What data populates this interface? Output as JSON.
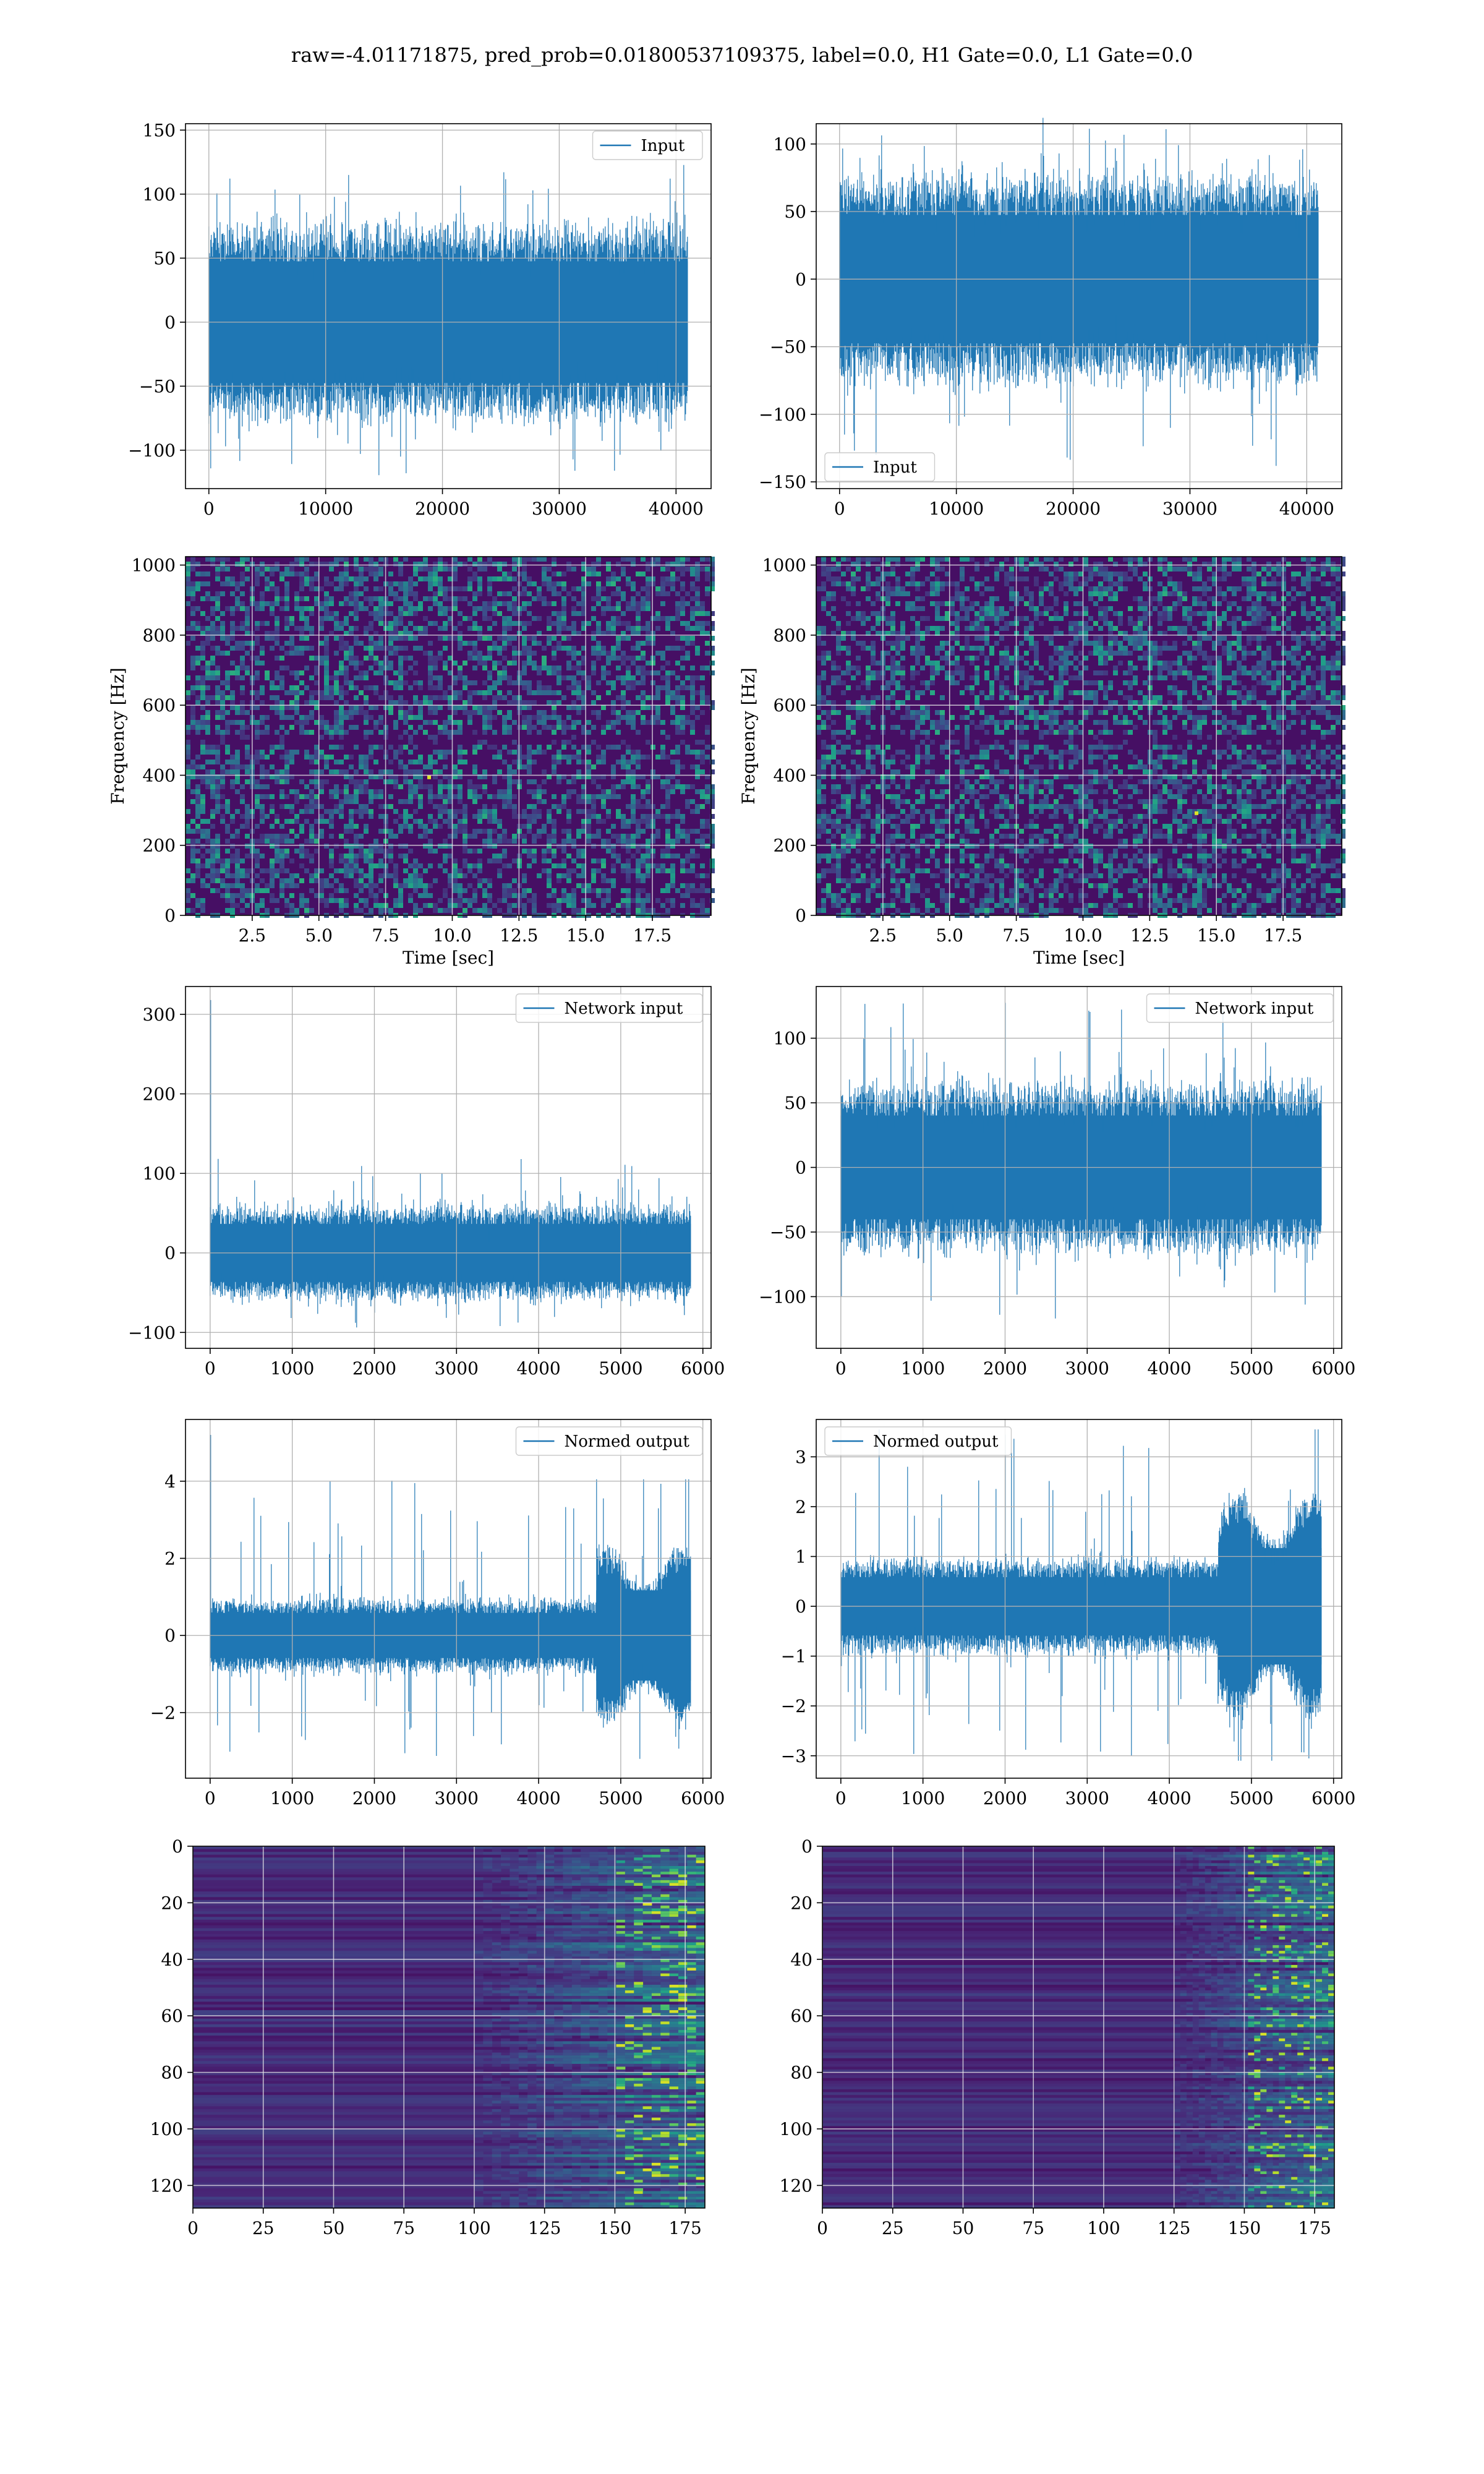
{
  "figure": {
    "suptitle": "raw=-4.01171875, pred_prob=0.01800537109375, label=0.0, H1 Gate=0.0, L1 Gate=0.0",
    "line_color": "#1f77b4"
  },
  "chart_data": [
    {
      "id": "h1-input",
      "type": "line",
      "series": [
        {
          "name": "Input"
        }
      ],
      "legend_loc": "upper right",
      "xlim": [
        -2000,
        43000
      ],
      "ylim": [
        -130,
        155
      ],
      "xticks": [
        0,
        10000,
        20000,
        30000,
        40000
      ],
      "xticklabels": [
        "0",
        "10000",
        "20000",
        "30000",
        "40000"
      ],
      "yticks": [
        -100,
        -50,
        0,
        50,
        100,
        150
      ],
      "yticklabels": [
        "−100",
        "−50",
        "0",
        "50",
        "100",
        "150"
      ],
      "signal": {
        "n_samples": 40960,
        "band_low": -65,
        "band_high": 65,
        "spike_min": -120,
        "spike_max": 130
      },
      "grid": true
    },
    {
      "id": "l1-input",
      "type": "line",
      "series": [
        {
          "name": "Input"
        }
      ],
      "legend_loc": "lower left",
      "xlim": [
        -2000,
        43000
      ],
      "ylim": [
        -155,
        115
      ],
      "xticks": [
        0,
        10000,
        20000,
        30000,
        40000
      ],
      "xticklabels": [
        "0",
        "10000",
        "20000",
        "30000",
        "40000"
      ],
      "yticks": [
        -150,
        -100,
        -50,
        0,
        50,
        100
      ],
      "yticklabels": [
        "−150",
        "−100",
        "−50",
        "0",
        "50",
        "100"
      ],
      "signal": {
        "n_samples": 40960,
        "band_low": -65,
        "band_high": 65,
        "spike_min": -142,
        "spike_max": 122
      },
      "grid": true
    },
    {
      "id": "h1-spectrogram",
      "type": "heatmap",
      "xlabel": "Time [sec]",
      "ylabel": "Frequency [Hz]",
      "xlim": [
        0,
        19.7
      ],
      "ylim": [
        0,
        1024
      ],
      "xticks": [
        2.5,
        5.0,
        7.5,
        10.0,
        12.5,
        15.0,
        17.5
      ],
      "xticklabels": [
        "2.5",
        "5.0",
        "7.5",
        "10.0",
        "12.5",
        "15.0",
        "17.5"
      ],
      "yticks": [
        0,
        200,
        400,
        600,
        800,
        1000
      ],
      "yticklabels": [
        "0",
        "200",
        "400",
        "600",
        "800",
        "1000"
      ],
      "colormap": "viridis",
      "grid": true
    },
    {
      "id": "l1-spectrogram",
      "type": "heatmap",
      "xlabel": "Time [sec]",
      "ylabel": "Frequency [Hz]",
      "xlim": [
        0,
        19.7
      ],
      "ylim": [
        0,
        1024
      ],
      "xticks": [
        2.5,
        5.0,
        7.5,
        10.0,
        12.5,
        15.0,
        17.5
      ],
      "xticklabels": [
        "2.5",
        "5.0",
        "7.5",
        "10.0",
        "12.5",
        "15.0",
        "17.5"
      ],
      "yticks": [
        0,
        200,
        400,
        600,
        800,
        1000
      ],
      "yticklabels": [
        "0",
        "200",
        "400",
        "600",
        "800",
        "1000"
      ],
      "colormap": "viridis",
      "grid": true
    },
    {
      "id": "h1-network-input",
      "type": "line",
      "series": [
        {
          "name": "Network input"
        }
      ],
      "legend_loc": "upper right",
      "xlim": [
        -300,
        6100
      ],
      "ylim": [
        -120,
        335
      ],
      "xticks": [
        0,
        1000,
        2000,
        3000,
        4000,
        5000,
        6000
      ],
      "xticklabels": [
        "0",
        "1000",
        "2000",
        "3000",
        "4000",
        "5000",
        "6000"
      ],
      "yticks": [
        -100,
        0,
        100,
        200,
        300
      ],
      "yticklabels": [
        "−100",
        "0",
        "100",
        "200",
        "300"
      ],
      "signal": {
        "n_samples": 5850,
        "band_low": -50,
        "band_high": 50,
        "spike_min": -95,
        "spike_max": 120,
        "initial_spike": 318
      },
      "grid": true
    },
    {
      "id": "l1-network-input",
      "type": "line",
      "series": [
        {
          "name": "Network input"
        }
      ],
      "legend_loc": "upper right",
      "xlim": [
        -300,
        6100
      ],
      "ylim": [
        -140,
        140
      ],
      "xticks": [
        0,
        1000,
        2000,
        3000,
        4000,
        5000,
        6000
      ],
      "xticklabels": [
        "0",
        "1000",
        "2000",
        "3000",
        "4000",
        "5000",
        "6000"
      ],
      "yticks": [
        -100,
        -50,
        0,
        50,
        100
      ],
      "yticklabels": [
        "−100",
        "−50",
        "0",
        "50",
        "100"
      ],
      "signal": {
        "n_samples": 5850,
        "band_low": -55,
        "band_high": 55,
        "spike_min": -120,
        "spike_max": 132,
        "initial_spike": -100
      },
      "grid": true
    },
    {
      "id": "h1-normed-output",
      "type": "line",
      "series": [
        {
          "name": "Normed output"
        }
      ],
      "legend_loc": "upper right",
      "xlim": [
        -300,
        6100
      ],
      "ylim": [
        -3.7,
        5.6
      ],
      "xticks": [
        0,
        1000,
        2000,
        3000,
        4000,
        5000,
        6000
      ],
      "xticklabels": [
        "0",
        "1000",
        "2000",
        "3000",
        "4000",
        "5000",
        "6000"
      ],
      "yticks": [
        -2,
        0,
        2,
        4
      ],
      "yticklabels": [
        "−2",
        "0",
        "2",
        "4"
      ],
      "signal": {
        "n_samples": 5850,
        "band_low": -0.8,
        "band_high": 0.8,
        "spike_min": -3.2,
        "spike_max": 4.05,
        "initial_spike": 5.2,
        "burst_start": 4700
      },
      "grid": true
    },
    {
      "id": "l1-normed-output",
      "type": "line",
      "series": [
        {
          "name": "Normed output"
        }
      ],
      "legend_loc": "upper left",
      "xlim": [
        -300,
        6100
      ],
      "ylim": [
        -3.45,
        3.75
      ],
      "xticks": [
        0,
        1000,
        2000,
        3000,
        4000,
        5000,
        6000
      ],
      "xticklabels": [
        "0",
        "1000",
        "2000",
        "3000",
        "4000",
        "5000",
        "6000"
      ],
      "yticks": [
        -3,
        -2,
        -1,
        0,
        1,
        2,
        3
      ],
      "yticklabels": [
        "−3",
        "−2",
        "−1",
        "0",
        "1",
        "2",
        "3"
      ],
      "signal": {
        "n_samples": 5850,
        "band_low": -0.8,
        "band_high": 0.8,
        "spike_min": -3.1,
        "spike_max": 3.55,
        "initial_spike": -1.2,
        "burst_start": 4600
      },
      "grid": true
    },
    {
      "id": "h1-feature-map",
      "type": "heatmap",
      "xlim": [
        0,
        182
      ],
      "ylim": [
        128,
        0
      ],
      "xticks": [
        0,
        25,
        50,
        75,
        100,
        125,
        150,
        175
      ],
      "xticklabels": [
        "0",
        "25",
        "50",
        "75",
        "100",
        "125",
        "150",
        "175"
      ],
      "yticks": [
        0,
        20,
        40,
        60,
        80,
        100,
        120
      ],
      "yticklabels": [
        "0",
        "20",
        "40",
        "60",
        "80",
        "100",
        "120"
      ],
      "colormap": "viridis",
      "activity_start": 100,
      "grid": true
    },
    {
      "id": "l1-feature-map",
      "type": "heatmap",
      "xlim": [
        0,
        182
      ],
      "ylim": [
        128,
        0
      ],
      "xticks": [
        0,
        25,
        50,
        75,
        100,
        125,
        150,
        175
      ],
      "xticklabels": [
        "0",
        "25",
        "50",
        "75",
        "100",
        "125",
        "150",
        "175"
      ],
      "yticks": [
        0,
        20,
        40,
        60,
        80,
        100,
        120
      ],
      "yticklabels": [
        "0",
        "20",
        "40",
        "60",
        "80",
        "100",
        "120"
      ],
      "colormap": "viridis",
      "activity_start": 125,
      "grid": true
    }
  ]
}
